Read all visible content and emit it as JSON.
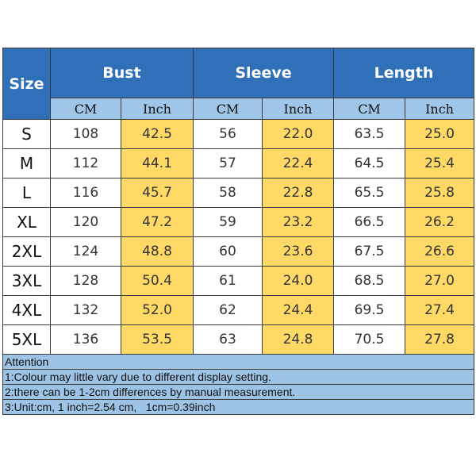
{
  "table": {
    "header": {
      "size": "Size",
      "groups": [
        "Bust",
        "Sleeve",
        "Length"
      ],
      "units": [
        "CM",
        "Inch",
        "CM",
        "Inch",
        "CM",
        "Inch"
      ]
    },
    "rows": [
      [
        "S",
        "108",
        "42.5",
        "56",
        "22.0",
        "63.5",
        "25.0"
      ],
      [
        "M",
        "112",
        "44.1",
        "57",
        "22.4",
        "64.5",
        "25.4"
      ],
      [
        "L",
        "116",
        "45.7",
        "58",
        "22.8",
        "65.5",
        "25.8"
      ],
      [
        "XL",
        "120",
        "47.2",
        "59",
        "23.2",
        "66.5",
        "26.2"
      ],
      [
        "2XL",
        "124",
        "48.8",
        "60",
        "23.6",
        "67.5",
        "26.6"
      ],
      [
        "3XL",
        "128",
        "50.4",
        "61",
        "24.0",
        "68.5",
        "27.0"
      ],
      [
        "4XL",
        "132",
        "52.0",
        "62",
        "24.4",
        "69.5",
        "27.4"
      ],
      [
        "5XL",
        "136",
        "53.5",
        "63",
        "24.8",
        "70.5",
        "27.8"
      ]
    ],
    "notes": [
      "Attention",
      "1:Colour may little vary due to different display setting.",
      "2:there can be 1-2cm differences by manual measurement.",
      "3:Unit:cm, 1 inch=2.54 cm,   1cm=0.39inch"
    ]
  }
}
